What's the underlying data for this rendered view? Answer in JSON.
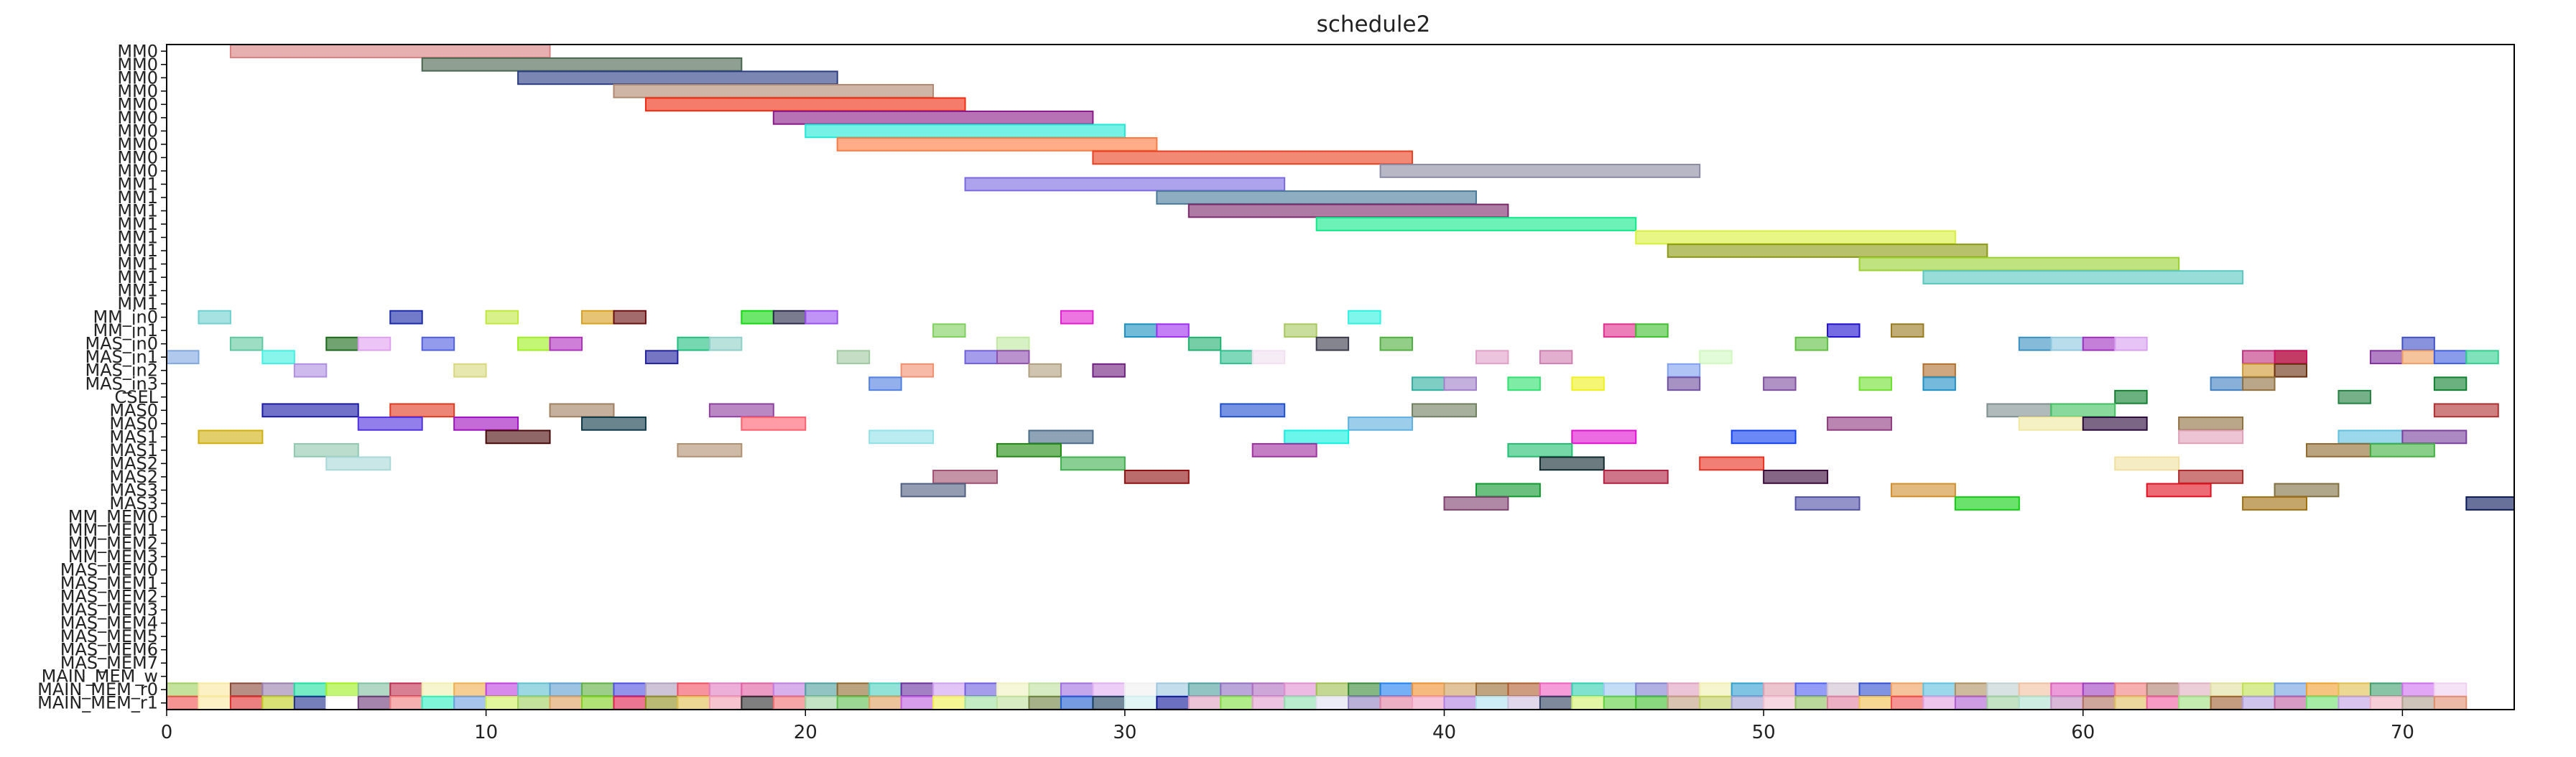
{
  "chart_data": {
    "type": "gantt",
    "title": "schedule2",
    "xlim": [
      0,
      73.5
    ],
    "x_ticks": [
      "0",
      "10",
      "20",
      "30",
      "40",
      "50",
      "60",
      "70"
    ],
    "x_tick_values": [
      0,
      10,
      20,
      30,
      40,
      50,
      60,
      70
    ],
    "rows": [
      "MM0",
      "MM0",
      "MM0",
      "MM0",
      "MM0",
      "MM0",
      "MM0",
      "MM0",
      "MM0",
      "MM0",
      "MM1",
      "MM1",
      "MM1",
      "MM1",
      "MM1",
      "MM1",
      "MM1",
      "MM1",
      "MM1",
      "MM1",
      "MM_in0",
      "MM_in1",
      "MAS_in0",
      "MAS_in1",
      "MAS_in2",
      "MAS_in3",
      "CSEL",
      "MAS0",
      "MAS0",
      "MAS1",
      "MAS1",
      "MAS2",
      "MAS2",
      "MAS3",
      "MAS3",
      "MM_MEM0",
      "MM_MEM1",
      "MM_MEM2",
      "MM_MEM3",
      "MAS_MEM0",
      "MAS_MEM1",
      "MAS_MEM2",
      "MAS_MEM3",
      "MAS_MEM4",
      "MAS_MEM5",
      "MAS_MEM6",
      "MAS_MEM7",
      "MAIN_MEM_w",
      "MAIN_MEM_r0",
      "MAIN_MEM_r1"
    ],
    "bars": [
      [
        0,
        2,
        12,
        "#d98080"
      ],
      [
        1,
        8,
        18,
        "#4a6650"
      ],
      [
        2,
        11,
        21,
        "#2a3d82"
      ],
      [
        3,
        14,
        24,
        "#b08870"
      ],
      [
        4,
        15,
        25,
        "#ef2a10"
      ],
      [
        5,
        19,
        29,
        "#8a1a88"
      ],
      [
        6,
        20,
        30,
        "#22e8d6"
      ],
      [
        7,
        21,
        31,
        "#ff7a40"
      ],
      [
        8,
        29,
        39,
        "#e84020"
      ],
      [
        9,
        38,
        48,
        "#8a8aa2"
      ],
      [
        10,
        25,
        35,
        "#7a6ae0"
      ],
      [
        11,
        31,
        41,
        "#4a7a9a"
      ],
      [
        12,
        32,
        42,
        "#7a2a6a"
      ],
      [
        13,
        36,
        46,
        "#12e88a"
      ],
      [
        14,
        46,
        56,
        "#d8f03a"
      ],
      [
        15,
        47,
        57,
        "#8a9a10"
      ],
      [
        16,
        53,
        63,
        "#9ad030"
      ],
      [
        17,
        55,
        65,
        "#5ac8c0"
      ],
      [
        20,
        1,
        2,
        "#70d0d0"
      ],
      [
        20,
        7,
        8,
        "#1a2aa8"
      ],
      [
        20,
        10,
        11,
        "#c0e840"
      ],
      [
        20,
        13,
        14,
        "#d8a020"
      ],
      [
        20,
        14,
        15,
        "#6a1010"
      ],
      [
        20,
        18,
        19,
        "#12d812"
      ],
      [
        20,
        19,
        20,
        "#2a2a4a"
      ],
      [
        20,
        20,
        21,
        "#9a50f0"
      ],
      [
        20,
        28,
        29,
        "#e020d0"
      ],
      [
        20,
        37,
        38,
        "#30f0e0"
      ],
      [
        21,
        24,
        25,
        "#80d060"
      ],
      [
        21,
        30,
        31,
        "#1a90c0"
      ],
      [
        21,
        31,
        32,
        "#a030f0"
      ],
      [
        21,
        35,
        36,
        "#a8c860"
      ],
      [
        21,
        45,
        46,
        "#e03090"
      ],
      [
        21,
        46,
        47,
        "#40c030"
      ],
      [
        21,
        52,
        53,
        "#2010d0"
      ],
      [
        21,
        54,
        55,
        "#9a7a20"
      ],
      [
        22,
        2,
        3,
        "#60c8a0"
      ],
      [
        22,
        5,
        6,
        "#1a6a1a"
      ],
      [
        22,
        6,
        7,
        "#e0a0f0"
      ],
      [
        22,
        8,
        9,
        "#5060e0"
      ],
      [
        22,
        11,
        12,
        "#a0f020"
      ],
      [
        22,
        12,
        13,
        "#b030c0"
      ],
      [
        22,
        16,
        17,
        "#20c080"
      ],
      [
        22,
        17,
        18,
        "#90d0c8"
      ],
      [
        22,
        26,
        27,
        "#c0e8a0"
      ],
      [
        22,
        32,
        33,
        "#20b070"
      ],
      [
        22,
        36,
        37,
        "#3a3a4a"
      ],
      [
        22,
        38,
        39,
        "#50b040"
      ],
      [
        22,
        51,
        52,
        "#60c040"
      ],
      [
        22,
        58,
        59,
        "#3a90c0"
      ],
      [
        22,
        59,
        60,
        "#90c8e0"
      ],
      [
        22,
        60,
        61,
        "#a030c0"
      ],
      [
        22,
        61,
        62,
        "#d8a0f0"
      ],
      [
        22,
        70,
        71,
        "#4050c8"
      ],
      [
        23,
        0,
        1,
        "#80a8e0"
      ],
      [
        23,
        3,
        4,
        "#40f0e0"
      ],
      [
        23,
        15,
        16,
        "#2020a0"
      ],
      [
        23,
        21,
        22,
        "#a0c8a0"
      ],
      [
        23,
        25,
        26,
        "#7060e0"
      ],
      [
        23,
        26,
        27,
        "#9050b0"
      ],
      [
        23,
        33,
        34,
        "#30c090"
      ],
      [
        23,
        34,
        35,
        "#f0e0f0"
      ],
      [
        23,
        41,
        42,
        "#e0a0c8"
      ],
      [
        23,
        43,
        44,
        "#d080b0"
      ],
      [
        23,
        48,
        49,
        "#d0f8c0"
      ],
      [
        23,
        65,
        66,
        "#c03080"
      ],
      [
        23,
        66,
        67,
        "#7a3a1a"
      ],
      [
        23,
        66,
        67,
        "#d01060"
      ],
      [
        23,
        69,
        70,
        "#8030a0"
      ],
      [
        23,
        70,
        71,
        "#f0a060"
      ],
      [
        23,
        71,
        72,
        "#4060e0"
      ],
      [
        23,
        72,
        73,
        "#30d090"
      ],
      [
        24,
        4,
        5,
        "#b090e0"
      ],
      [
        24,
        9,
        10,
        "#d8d880"
      ],
      [
        24,
        23,
        24,
        "#f09070"
      ],
      [
        24,
        27,
        28,
        "#b0a080"
      ],
      [
        24,
        29,
        30,
        "#702080"
      ],
      [
        24,
        47,
        48,
        "#80a0f0"
      ],
      [
        24,
        55,
        56,
        "#b07030"
      ],
      [
        24,
        65,
        66,
        "#d09830"
      ],
      [
        24,
        66,
        67,
        "#6a3010"
      ],
      [
        25,
        22,
        23,
        "#5080e0"
      ],
      [
        25,
        39,
        40,
        "#30b0a0"
      ],
      [
        25,
        40,
        41,
        "#a080c8"
      ],
      [
        25,
        42,
        43,
        "#30e070"
      ],
      [
        25,
        44,
        45,
        "#f0f020"
      ],
      [
        25,
        47,
        48,
        "#7050a0"
      ],
      [
        25,
        50,
        51,
        "#8050a0"
      ],
      [
        25,
        53,
        54,
        "#70e030"
      ],
      [
        25,
        55,
        56,
        "#2090c8"
      ],
      [
        25,
        64,
        65,
        "#4080c0"
      ],
      [
        25,
        65,
        66,
        "#907040"
      ],
      [
        25,
        71,
        72,
        "#108030"
      ],
      [
        26,
        61,
        62,
        "#108030"
      ],
      [
        26,
        68,
        69,
        "#208040"
      ],
      [
        27,
        3,
        6,
        "#1a1aa8"
      ],
      [
        27,
        7,
        9,
        "#e03a20"
      ],
      [
        27,
        12,
        14,
        "#a08060"
      ],
      [
        27,
        17,
        19,
        "#9040a0"
      ],
      [
        27,
        33,
        35,
        "#2050d0"
      ],
      [
        27,
        39,
        41,
        "#708060"
      ],
      [
        27,
        57,
        59,
        "#809090"
      ],
      [
        27,
        59,
        61,
        "#40c060"
      ],
      [
        27,
        71,
        73,
        "#b03030"
      ],
      [
        28,
        6,
        8,
        "#5030e0"
      ],
      [
        28,
        9,
        11,
        "#a010c0"
      ],
      [
        28,
        13,
        15,
        "#103a4a"
      ],
      [
        28,
        18,
        20,
        "#ff6070"
      ],
      [
        28,
        37,
        39,
        "#60b0e0"
      ],
      [
        28,
        52,
        54,
        "#903a80"
      ],
      [
        28,
        58,
        60,
        "#f0e8a0"
      ],
      [
        28,
        60,
        62,
        "#2a0a3a"
      ],
      [
        28,
        63,
        65,
        "#907040"
      ],
      [
        29,
        1,
        3,
        "#d0b010"
      ],
      [
        29,
        10,
        12,
        "#4a0a0a"
      ],
      [
        29,
        22,
        24,
        "#90e0e8"
      ],
      [
        29,
        27,
        29,
        "#4a6a8a"
      ],
      [
        29,
        35,
        37,
        "#10f0e0"
      ],
      [
        29,
        44,
        46,
        "#e010d0"
      ],
      [
        29,
        49,
        51,
        "#1040f0"
      ],
      [
        29,
        63,
        65,
        "#e0a0b8"
      ],
      [
        29,
        68,
        70,
        "#60c0e0"
      ],
      [
        29,
        70,
        72,
        "#7a40a0"
      ],
      [
        30,
        4,
        6,
        "#90c8b0"
      ],
      [
        30,
        16,
        18,
        "#b09070"
      ],
      [
        30,
        26,
        28,
        "#208a10"
      ],
      [
        30,
        34,
        36,
        "#a030a0"
      ],
      [
        30,
        42,
        44,
        "#20c070"
      ],
      [
        30,
        67,
        69,
        "#906a30"
      ],
      [
        30,
        69,
        71,
        "#40b040"
      ],
      [
        31,
        5,
        7,
        "#a8d8d8"
      ],
      [
        31,
        28,
        30,
        "#40b050"
      ],
      [
        31,
        43,
        45,
        "#102a30"
      ],
      [
        31,
        48,
        50,
        "#e83020"
      ],
      [
        31,
        61,
        63,
        "#f0e0a0"
      ],
      [
        32,
        24,
        26,
        "#a05070"
      ],
      [
        32,
        30,
        32,
        "#901010"
      ],
      [
        32,
        45,
        47,
        "#b02040"
      ],
      [
        32,
        50,
        52,
        "#3a0a3a"
      ],
      [
        32,
        63,
        65,
        "#b02a2a"
      ],
      [
        33,
        23,
        25,
        "#506080"
      ],
      [
        33,
        41,
        43,
        "#109a30"
      ],
      [
        33,
        54,
        56,
        "#d09030"
      ],
      [
        33,
        62,
        64,
        "#e01020"
      ],
      [
        33,
        66,
        68,
        "#807040"
      ],
      [
        34,
        40,
        42,
        "#804070"
      ],
      [
        34,
        51,
        53,
        "#5050a8"
      ],
      [
        34,
        56,
        58,
        "#10d010"
      ],
      [
        34,
        65,
        67,
        "#a07010"
      ],
      [
        34,
        72,
        74,
        "#0a1a5a"
      ]
    ],
    "mem_rows": [
      48,
      49
    ],
    "mem_palette": [
      [
        "#a0d060",
        "#f8e8a0",
        "#8a4a3a",
        "#9a80b0",
        "#20e0a0",
        "#a0f020",
        "#80c0a0",
        "#c03050",
        "#f0f0b0",
        "#f0b050",
        "#c040e0",
        "#60c0d0",
        "#60a0d0",
        "#60b040",
        "#5050e0",
        "#b0a0c0",
        "#f05060",
        "#e080c0",
        "#e060a0",
        "#c080e0",
        "#50a0a0",
        "#906a30",
        "#50d0c0",
        "#6a30a0",
        "#d0a0f0",
        "#7060e0",
        "#f0f0c0",
        "#c0e0a0",
        "#a070e0",
        "#e0b0f0",
        "#f0f0f0",
        "#a0c8e0",
        "#50a0a0",
        "#9070c0",
        "#b070c0",
        "#e090d0",
        "#a0c050",
        "#3a8a3a",
        "#2080f0",
        "#f09030",
        "#d0a060",
        "#9a6a30",
        "#b06030",
        "#f060c0",
        "#30d0b0",
        "#a0c8f0",
        "#8080d0",
        "#e0a0c0",
        "#f0f0b0",
        "#30a0d0",
        "#e0a0b0",
        "#5060f0",
        "#d0c0d0",
        "#3050d0",
        "#f0a060",
        "#60c0e0",
        "#b09060",
        "#c0d0d0",
        "#f0c0a0",
        "#e060c0",
        "#a040c0",
        "#f08080",
        "#b08070",
        "#e0b0c0",
        "#e0e0a0",
        "#c0e050",
        "#70a0e0",
        "#f0a030",
        "#e0c050",
        "#40a070",
        "#d070f0",
        "#f0d0f0"
      ],
      [
        "#f05050",
        "#f8e8a0",
        "#e03030",
        "#c0d020",
        "#203090",
        "#ffffff",
        "#703a7a",
        "#f08080",
        "#30f0c0",
        "#70a0e0",
        "#d0f060",
        "#a0d060",
        "#e0a060",
        "#80d020",
        "#e02050",
        "#909020",
        "#e0c050",
        "#f0a0b0",
        "#303030",
        "#f07070",
        "#a0d0a0",
        "#60c050",
        "#e0a060",
        "#c060e0",
        "#f0f050",
        "#a0e0a0",
        "#c0e0a0",
        "#708040",
        "#2060d0",
        "#204060",
        "#d0f0f0",
        "#101a9a",
        "#e0a0c0",
        "#80e040",
        "#e0a0d0",
        "#90e0b0",
        "#e0e0f0",
        "#9080c0",
        "#e080a0",
        "#f0a0c0",
        "#b080e0",
        "#b0e0f0",
        "#d0c0e0",
        "#304060",
        "#d0f070",
        "#60d040",
        "#40c030",
        "#c0a080",
        "#c0d060",
        "#a0a0d0",
        "#f0c0d0",
        "#90c060",
        "#e080a0",
        "#f0c050",
        "#f05050",
        "#e0a0e0",
        "#b060d0",
        "#a0d0a0",
        "#b0e0d0",
        "#c090c0",
        "#b07060",
        "#e0c060",
        "#f060a0",
        "#a0e080",
        "#a06030",
        "#b0a0e0",
        "#c060a0",
        "#70e070",
        "#c0a0e0",
        "#f0b0c0",
        "#b0a090",
        "#e09070"
      ]
    ]
  }
}
